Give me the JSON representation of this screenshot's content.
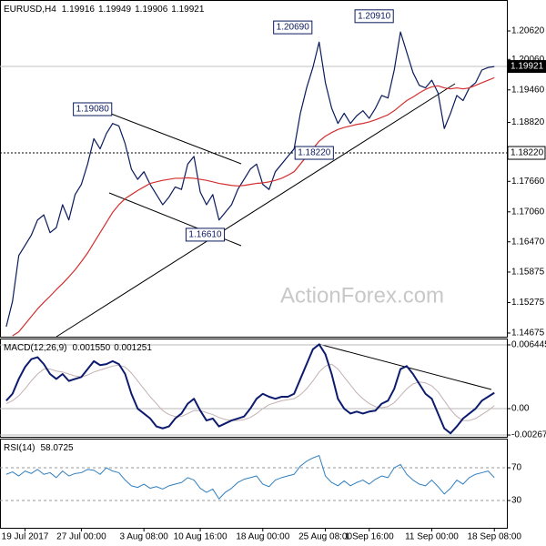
{
  "watermark": "ActionForex.com",
  "chart_data": [
    {
      "type": "line",
      "title": "EURUSD,H4",
      "readings": [
        1.19916,
        1.19949,
        1.19906,
        1.19921
      ],
      "xlim": [
        -1,
        80
      ],
      "ylim": [
        1.14603,
        1.21229
      ],
      "grid": false,
      "yticks": [
        {
          "value": 1.2062,
          "label": "1.20620"
        },
        {
          "value": 1.2006,
          "label": "1.20060"
        },
        {
          "value": 1.1946,
          "label": "1.19460"
        },
        {
          "value": 1.1882,
          "label": "1.18820"
        },
        {
          "value": 1.1766,
          "label": "1.17660"
        },
        {
          "value": 1.1706,
          "label": "1.17060"
        },
        {
          "value": 1.1647,
          "label": "1.16470"
        },
        1.15875,
        1.15275,
        1.14675
      ],
      "current": 1.19921,
      "level": {
        "value": 1.1822,
        "label": "1.18220"
      },
      "annotations": [
        {
          "x": 49,
          "value": 1.2069,
          "label": "1.20690"
        },
        {
          "x": 62,
          "value": 1.2091,
          "label": "1.20910"
        },
        {
          "x": 17,
          "value": 1.1908,
          "label": "1.19080"
        },
        {
          "x": 46,
          "value": 1.1822,
          "label": "1.18220"
        },
        {
          "x": 35,
          "value": 1.1661,
          "label": "1.16610"
        }
      ],
      "series": [
        {
          "color": "#0a1a5c",
          "width": 1.2,
          "values": [
            1.148,
            1.153,
            1.162,
            1.164,
            1.166,
            1.169,
            1.17,
            1.1665,
            1.1675,
            1.172,
            1.169,
            1.174,
            1.176,
            1.18,
            1.185,
            1.183,
            1.186,
            1.188,
            1.1875,
            1.184,
            1.179,
            1.177,
            1.1785,
            1.176,
            1.174,
            1.172,
            1.1735,
            1.1755,
            1.175,
            1.18,
            1.1815,
            1.1745,
            1.172,
            1.174,
            1.169,
            1.1705,
            1.172,
            1.175,
            1.177,
            1.179,
            1.18,
            1.176,
            1.175,
            1.1785,
            1.18,
            1.1815,
            1.183,
            1.19,
            1.195,
            1.199,
            1.204,
            1.196,
            1.191,
            1.188,
            1.19,
            1.188,
            1.1895,
            1.1905,
            1.189,
            1.191,
            1.1935,
            1.193,
            1.1985,
            1.206,
            1.202,
            1.198,
            1.1955,
            1.195,
            1.1965,
            1.194,
            1.187,
            1.19,
            1.1935,
            1.1925,
            1.195,
            1.196,
            1.1985,
            1.199,
            1.1992
          ]
        },
        {
          "color": "#d32f2f",
          "width": 1.2,
          "values": [
            null,
            1.1462,
            1.147,
            1.1485,
            1.15,
            1.1515,
            1.1528,
            1.154,
            1.1553,
            1.1565,
            1.1578,
            1.1592,
            1.1608,
            1.1625,
            1.1645,
            1.1665,
            1.1685,
            1.1705,
            1.172,
            1.1732,
            1.174,
            1.1748,
            1.1755,
            1.1762,
            1.1765,
            1.1768,
            1.177,
            1.1772,
            1.1772,
            1.1773,
            1.1772,
            1.177,
            1.1768,
            1.1765,
            1.1762,
            1.176,
            1.1758,
            1.1757,
            1.1758,
            1.176,
            1.1762,
            1.1763,
            1.1765,
            1.1768,
            1.1772,
            1.1778,
            1.1785,
            1.18,
            1.1815,
            1.183,
            1.1845,
            1.1855,
            1.1862,
            1.1868,
            1.1872,
            1.1875,
            1.1878,
            1.188,
            1.1883,
            1.1887,
            1.1892,
            1.1897,
            1.1905,
            1.1915,
            1.1925,
            1.1932,
            1.194,
            1.1947,
            1.1952,
            1.1954,
            1.195,
            1.1948,
            1.195,
            1.1948,
            1.195,
            1.1955,
            1.196,
            1.1965,
            1.197
          ]
        }
      ]
    },
    {
      "type": "line",
      "title": "MACD(12,26,9)",
      "readings": [
        {
          "value": 0.00155,
          "label": "0.001550"
        },
        {
          "value": 0.001251,
          "label": "0.001251"
        }
      ],
      "xlim": [
        -1,
        80
      ],
      "ylim": [
        -0.00285,
        0.00709
      ],
      "grid": true,
      "yticks": [
        0.006445,
        {
          "value": 0,
          "label": "0.00"
        },
        -0.00267
      ],
      "series": [
        {
          "color": "#c4b0b0",
          "width": 1,
          "values": [
            0.0005,
            0.0008,
            0.0013,
            0.002,
            0.0028,
            0.0035,
            0.004,
            0.004,
            0.0038,
            0.0037,
            0.0035,
            0.0033,
            0.0032,
            0.0034,
            0.0037,
            0.0039,
            0.0041,
            0.0043,
            0.0044,
            0.0042,
            0.0036,
            0.0028,
            0.002,
            0.0012,
            0.0005,
            -0.0002,
            -0.0006,
            -0.0008,
            -0.0008,
            -0.0005,
            -0.0002,
            -0.0002,
            -0.0004,
            -0.0006,
            -0.0009,
            -0.0011,
            -0.0012,
            -0.0012,
            -0.0011,
            -0.0009,
            -0.0005,
            0,
            0.0004,
            0.0006,
            0.0008,
            0.0009,
            0.001,
            0.0014,
            0.002,
            0.0028,
            0.0037,
            0.0043,
            0.0045,
            0.004,
            0.0032,
            0.0024,
            0.0016,
            0.001,
            0.0005,
            0.0002,
            0.0001,
            0.0002,
            0.0006,
            0.0013,
            0.002,
            0.0025,
            0.0027,
            0.0026,
            0.0023,
            0.0017,
            0.0008,
            -0.0001,
            -0.0008,
            -0.0012,
            -0.0012,
            -0.001,
            -0.0006,
            -0.0002,
            0.0003
          ]
        },
        {
          "color": "#0d1b6e",
          "width": 2,
          "values": [
            0.0008,
            0.0015,
            0.003,
            0.0042,
            0.005,
            0.0052,
            0.0045,
            0.0035,
            0.003,
            0.0035,
            0.0028,
            0.003,
            0.0032,
            0.004,
            0.0048,
            0.0044,
            0.0045,
            0.0048,
            0.0045,
            0.0035,
            0.0015,
            0,
            -0.0005,
            -0.001,
            -0.0018,
            -0.002,
            -0.0018,
            -0.001,
            -0.0005,
            0.0005,
            0.001,
            -0.0002,
            -0.0012,
            -0.001,
            -0.0018,
            -0.0015,
            -0.0012,
            -0.001,
            -0.0008,
            0,
            0.001,
            0.0015,
            0.0012,
            0.001,
            0.0012,
            0.0012,
            0.0015,
            0.003,
            0.0045,
            0.006,
            0.0065,
            0.0055,
            0.0035,
            0.001,
            0,
            -0.0005,
            -0.0003,
            -0.0005,
            -0.0003,
            -0.0002,
            0.0005,
            0.0008,
            0.002,
            0.004,
            0.0043,
            0.0035,
            0.0025,
            0.0015,
            0.001,
            -0.0005,
            -0.002,
            -0.0025,
            -0.0018,
            -0.001,
            -0.0005,
            0,
            0.0008,
            0.0012,
            0.0016
          ]
        }
      ]
    },
    {
      "type": "line",
      "title": "RSI(14)",
      "readings": [
        58.0725
      ],
      "xlim": [
        -1,
        80
      ],
      "ylim": [
        -3.3,
        105.6
      ],
      "grid": true,
      "yticks": [
        70,
        30
      ],
      "xticks": [
        {
          "value": 3,
          "label": "19 Jul 2017"
        },
        {
          "value": 12,
          "label": "27 Jul 00:00"
        },
        {
          "value": 22,
          "label": "3 Aug 08:00"
        },
        {
          "value": 31,
          "label": "10 Aug 16:00"
        },
        {
          "value": 41,
          "label": "18 Aug 00:00"
        },
        {
          "value": 51,
          "label": "25 Aug 08:00"
        },
        {
          "value": 58,
          "label": "1 Sep 16:00"
        },
        {
          "value": 68,
          "label": "11 Sep 00:00"
        },
        {
          "value": 78,
          "label": "18 Sep 08:00"
        }
      ],
      "series": [
        {
          "color": "#2f7fc0",
          "width": 1,
          "values": [
            62,
            65,
            60,
            66,
            63,
            68,
            62,
            64,
            58,
            66,
            60,
            63,
            64,
            68,
            67,
            62,
            70,
            66,
            64,
            55,
            48,
            46,
            50,
            45,
            47,
            44,
            48,
            50,
            52,
            58,
            55,
            45,
            40,
            44,
            32,
            40,
            45,
            52,
            56,
            58,
            60,
            50,
            47,
            55,
            58,
            60,
            62,
            72,
            78,
            82,
            85,
            60,
            52,
            48,
            54,
            48,
            52,
            55,
            50,
            56,
            60,
            58,
            70,
            74,
            62,
            55,
            50,
            48,
            55,
            47,
            38,
            45,
            55,
            50,
            58,
            62,
            64,
            66,
            58
          ]
        }
      ]
    }
  ]
}
